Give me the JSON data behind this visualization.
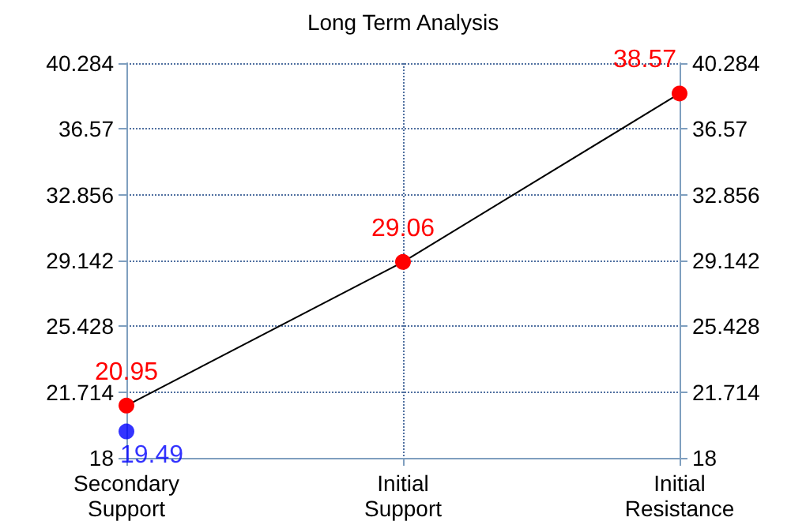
{
  "chart_data": {
    "type": "line",
    "title": "Long Term Analysis",
    "categories": [
      "Secondary Support",
      "Initial Support",
      "Initial Resistance"
    ],
    "series": [
      {
        "color": "#000000",
        "colors": [
          "#ff0000",
          "#ff0000",
          "#ff0000"
        ],
        "values": [
          20.95,
          29.06,
          38.57
        ]
      },
      {
        "type": "scatter",
        "x": [
          "Secondary Support"
        ],
        "color": "#0000ff",
        "values": [
          19.49
        ]
      }
    ],
    "ylim": [
      18,
      40.284
    ],
    "yticks": [
      18,
      21.714,
      25.428,
      29.142,
      32.856,
      36.57,
      40.284
    ],
    "y2lim": [
      18,
      40.284
    ],
    "y2ticks": [
      18,
      21.714,
      25.428,
      29.142,
      32.856,
      36.57,
      40.284
    ],
    "grid": true,
    "marker": "circle",
    "data_labels": true
  }
}
